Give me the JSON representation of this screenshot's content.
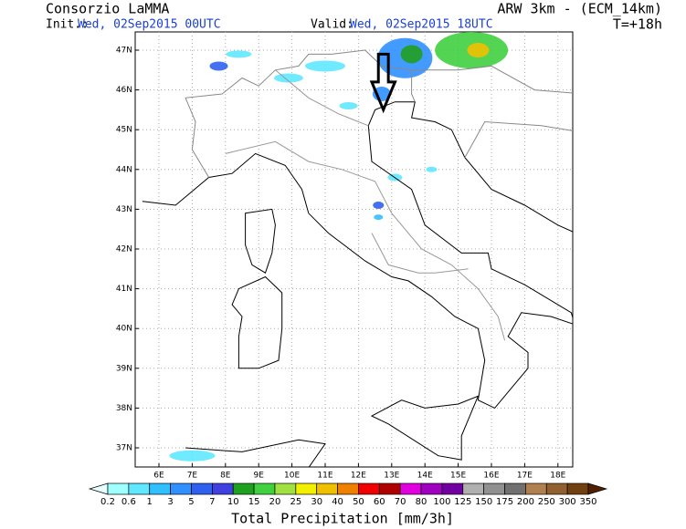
{
  "header": {
    "title": "Consorzio LaMMA",
    "init_label": "Init.:",
    "init_value": "Wed, 02Sep2015 00UTC",
    "valid_label": "Valid:",
    "valid_value": "Wed, 02Sep2015 18UTC",
    "model": "ARW 3km - (ECM_14km)",
    "lead_time": "T=+18h"
  },
  "map": {
    "lat_labels": [
      "47N",
      "46N",
      "45N",
      "44N",
      "43N",
      "42N",
      "41N",
      "40N",
      "39N",
      "38N",
      "37N"
    ],
    "lon_labels": [
      "6E",
      "7E",
      "8E",
      "9E",
      "10E",
      "11E",
      "12E",
      "13E",
      "14E",
      "15E",
      "16E",
      "17E",
      "18E"
    ]
  },
  "colorbar": {
    "title": "Total Precipitation [mm/3h]",
    "labels": [
      "0.2",
      "0.6",
      "1",
      "3",
      "5",
      "7",
      "10",
      "15",
      "20",
      "25",
      "30",
      "40",
      "50",
      "60",
      "70",
      "80",
      "100",
      "125",
      "150",
      "175",
      "200",
      "250",
      "300",
      "350"
    ],
    "colors": [
      "#e6ffff",
      "#a0ffff",
      "#60e8ff",
      "#30c0ff",
      "#3090ff",
      "#3060f0",
      "#4040e0",
      "#20a020",
      "#40d040",
      "#a0e040",
      "#f0f000",
      "#f0c000",
      "#f08000",
      "#f00000",
      "#b00000",
      "#e000e0",
      "#a000c0",
      "#7000a0",
      "#b0b0b0",
      "#909090",
      "#707070",
      "#b08050",
      "#906030",
      "#704010",
      "#502000"
    ]
  }
}
